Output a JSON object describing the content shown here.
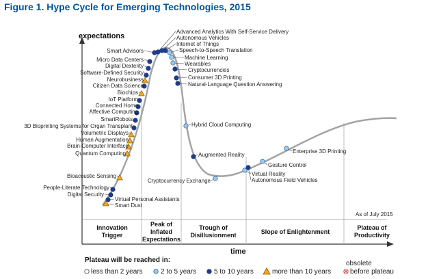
{
  "title": "Figure 1. Hype Cycle for Emerging Technologies, 2015",
  "y_axis_label": "expectations",
  "x_axis_label": "time",
  "as_of": "As of July 2015",
  "phases": [
    {
      "line1": "Innovation",
      "line2": "Trigger",
      "line3": ""
    },
    {
      "line1": "Peak of",
      "line2": "Inflated",
      "line3": "Expectations"
    },
    {
      "line1": "Trough of",
      "line2": "Disillusionment",
      "line3": ""
    },
    {
      "line1": "Slope of Enlightenment",
      "line2": "",
      "line3": ""
    },
    {
      "line1": "Plateau of",
      "line2": "Productivity",
      "line3": ""
    }
  ],
  "legend": {
    "title": "Plateau will be reached in:",
    "items": [
      {
        "label": "less than 2 years",
        "marker": "white-circle"
      },
      {
        "label": "2 to 5 years",
        "marker": "light-blue-circle"
      },
      {
        "label": "5 to 10 years",
        "marker": "dark-blue-circle"
      },
      {
        "label": "more than 10 years",
        "marker": "orange-triangle"
      },
      {
        "label_line1": "obsolete",
        "label_line2": "before plateau",
        "marker": "red-x-circle"
      }
    ]
  },
  "colors": {
    "title": "#00529b",
    "curve": "#a3a3a3",
    "dark_blue": "#1f3c88",
    "light_blue": "#9ec9ea",
    "orange": "#f5a623",
    "grid": "#bbbbbb"
  },
  "technologies": [
    {
      "name": "Advanced Analytics With Self-Service Delivery",
      "marker": "dark-blue"
    },
    {
      "name": "Autonomous Vehicles",
      "marker": "dark-blue"
    },
    {
      "name": "Internet of Things",
      "marker": "dark-blue"
    },
    {
      "name": "Speech-to-Speech Translation",
      "marker": "light-blue"
    },
    {
      "name": "Machine Learning",
      "marker": "light-blue"
    },
    {
      "name": "Wearables",
      "marker": "light-blue"
    },
    {
      "name": "Cryptocurrencies",
      "marker": "dark-blue"
    },
    {
      "name": "Consumer 3D Printing",
      "marker": "dark-blue"
    },
    {
      "name": "Natural-Language Question Answering",
      "marker": "dark-blue"
    },
    {
      "name": "Smart Advisors",
      "marker": "dark-blue"
    },
    {
      "name": "Micro Data Centers",
      "marker": "dark-blue"
    },
    {
      "name": "Digital Dexterity",
      "marker": "dark-blue"
    },
    {
      "name": "Software-Defined Security",
      "marker": "dark-blue"
    },
    {
      "name": "Neurobusiness",
      "marker": "orange"
    },
    {
      "name": "Citizen Data Science",
      "marker": "dark-blue"
    },
    {
      "name": "Biochips",
      "marker": "orange"
    },
    {
      "name": "IoT Platform",
      "marker": "dark-blue"
    },
    {
      "name": "Connected Home",
      "marker": "dark-blue"
    },
    {
      "name": "Affective Computing",
      "marker": "dark-blue"
    },
    {
      "name": "SmartRobots",
      "marker": "dark-blue"
    },
    {
      "name": "3D Bioprinting Systems for Organ Transplant",
      "marker": "dark-blue"
    },
    {
      "name": "Volumetric Displays",
      "marker": "orange"
    },
    {
      "name": "Human Augmentation",
      "marker": "orange"
    },
    {
      "name": "Brain-Computer Interface",
      "marker": "orange"
    },
    {
      "name": "Quantum Computing",
      "marker": "orange"
    },
    {
      "name": "Bioacoustic Sensing",
      "marker": "orange"
    },
    {
      "name": "People-Literate Technology",
      "marker": "dark-blue"
    },
    {
      "name": "Digital Security",
      "marker": "dark-blue"
    },
    {
      "name": "Virtual Personal Assistants",
      "marker": "dark-blue"
    },
    {
      "name": "Smart Dust",
      "marker": "orange"
    },
    {
      "name": "Hybrid Cloud Computing",
      "marker": "light-blue"
    },
    {
      "name": "Augmented Reality",
      "marker": "dark-blue"
    },
    {
      "name": "Cryptocurrency Exchange",
      "marker": "light-blue"
    },
    {
      "name": "Virtual Reality",
      "marker": "light-blue"
    },
    {
      "name": "Autonomous Field Vehicles",
      "marker": "dark-blue"
    },
    {
      "name": "Gesture Control",
      "marker": "light-blue"
    },
    {
      "name": "Enterprise 3D Printing",
      "marker": "light-blue"
    }
  ]
}
